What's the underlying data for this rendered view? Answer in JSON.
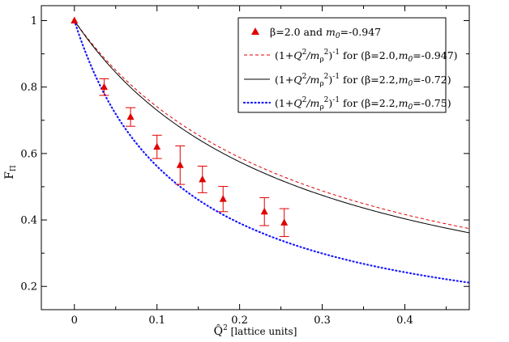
{
  "chart_data": {
    "type": "scatter",
    "xlabel_symbol": "Q̂",
    "xlabel_sup": "2",
    "xlabel_unit": "[lattice units]",
    "ylabel_main": "F",
    "ylabel_sub": "Π",
    "xlim": [
      -0.04,
      0.478
    ],
    "ylim": [
      0.13,
      1.045
    ],
    "xticks": [
      0,
      0.1,
      0.2,
      0.3,
      0.4
    ],
    "xtick_labels": [
      "0",
      "0.1",
      "0.2",
      "0.3",
      "0.4"
    ],
    "yticks": [
      0.2,
      0.4,
      0.6,
      0.8,
      1.0
    ],
    "ytick_labels": [
      "0.2",
      "0.4",
      "0.6",
      "0.8",
      "1"
    ],
    "data_points": {
      "name": "β=2.0 and m0=-0.947",
      "color": "#e00000",
      "x": [
        0,
        0.036,
        0.068,
        0.1,
        0.128,
        0.155,
        0.18,
        0.23,
        0.254
      ],
      "y": [
        1.0,
        0.8,
        0.71,
        0.62,
        0.565,
        0.522,
        0.463,
        0.425,
        0.392
      ],
      "err": [
        0,
        0.025,
        0.028,
        0.035,
        0.058,
        0.04,
        0.038,
        0.042,
        0.042
      ]
    },
    "curves": [
      {
        "name": "beta2_0_m0_-0.947",
        "mrho_sq": 0.2855,
        "color": "#e00000",
        "style": "dashed"
      },
      {
        "name": "beta2_2_m0_-0.72",
        "mrho_sq": 0.2705,
        "color": "#000000",
        "style": "solid"
      },
      {
        "name": "beta2_2_m0_-0.75",
        "mrho_sq": 0.1281,
        "color": "#1a1aff",
        "style": "dotted"
      }
    ]
  },
  "legend": {
    "entry1": {
      "prefix": "β=2.0 and ",
      "m": "m",
      "msub": "0",
      "suffix": "=-0.947"
    },
    "entry2": {
      "open": "(1+",
      "Q": "Q",
      "qsup": "2",
      "slash": "/m",
      "rhosub": "ρ",
      "rhosup": "2",
      "close": ")",
      "inv": "-1",
      "for_text": " for (β=2.0,",
      "m": "m",
      "msub": "0",
      "suffix": "=-0.947)"
    },
    "entry3": {
      "open": "(1+",
      "Q": "Q",
      "qsup": "2",
      "slash": "/m",
      "rhosub": "ρ",
      "rhosup": "2",
      "close": ")",
      "inv": "-1",
      "for_text": " for (β=2.2,",
      "m": "m",
      "msub": "0",
      "suffix": "=-0.72)"
    },
    "entry4": {
      "open": "(1+",
      "Q": "Q",
      "qsup": "2",
      "slash": "/m",
      "rhosub": "ρ",
      "rhosup": "2",
      "close": ")",
      "inv": "-1",
      "for_text": " for (β=2.2,",
      "m": "m",
      "msub": "0",
      "suffix": "=-0.75)"
    }
  }
}
